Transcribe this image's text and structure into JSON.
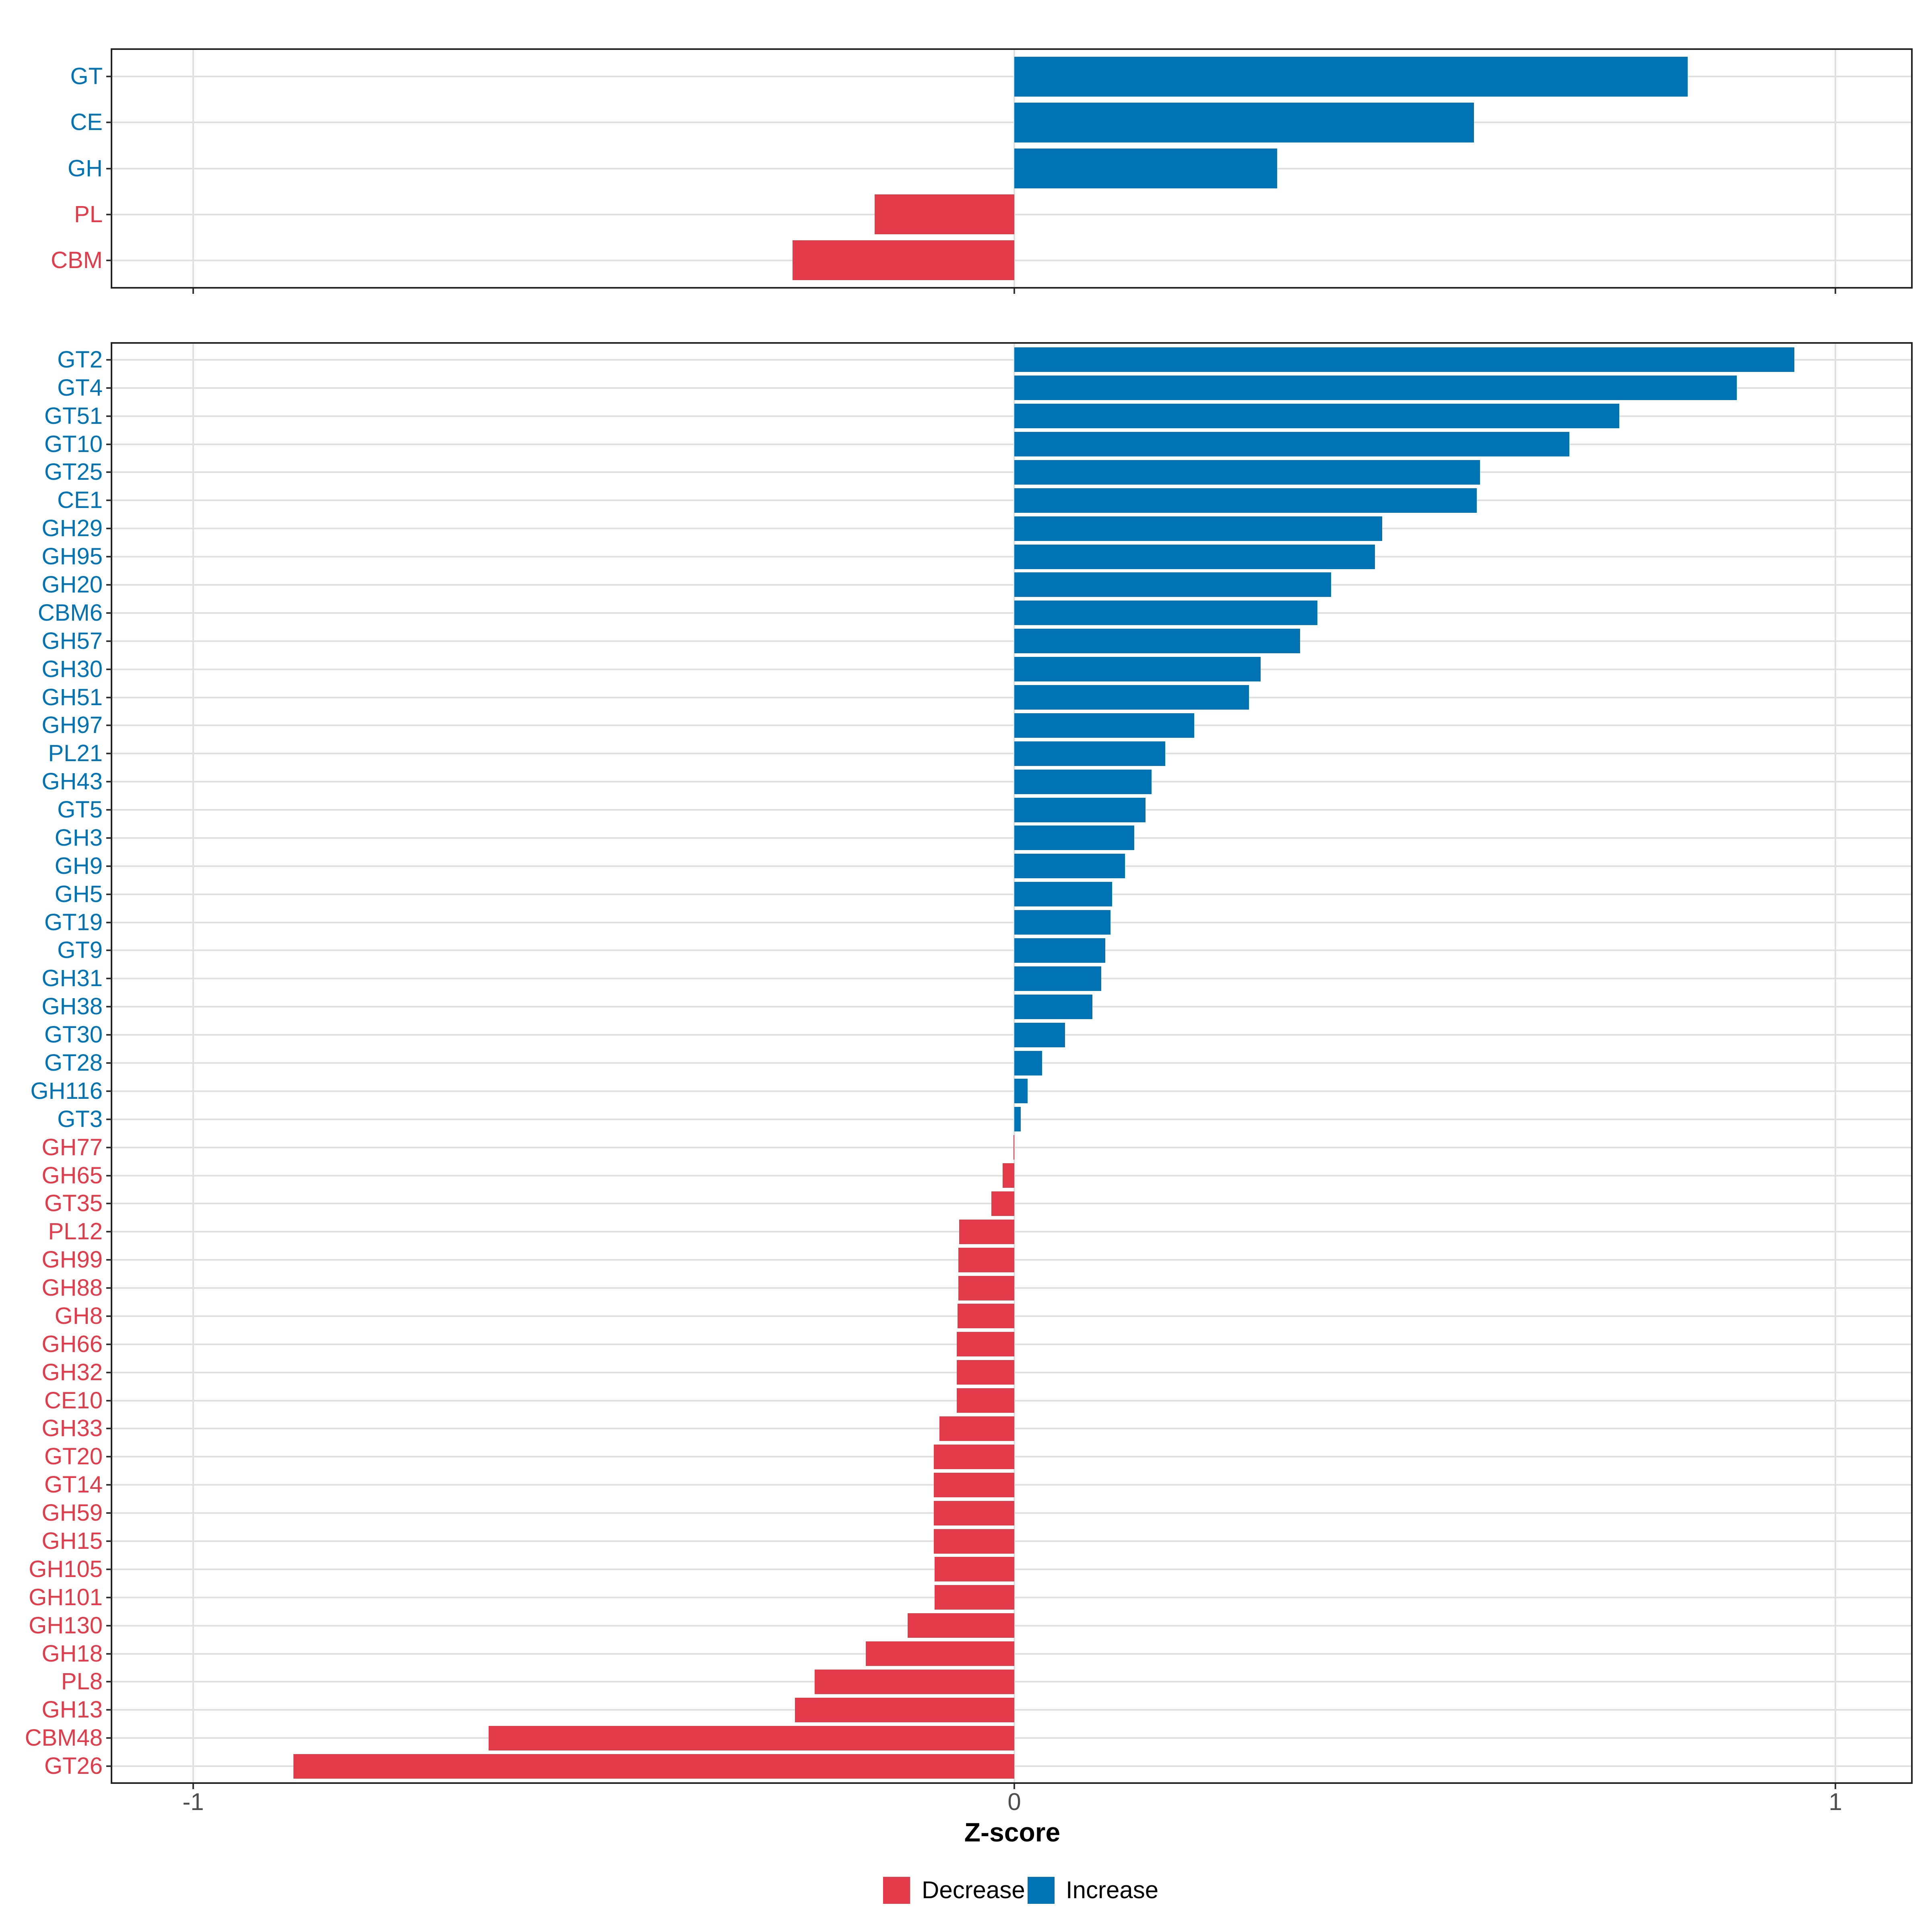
{
  "x_axis": {
    "label": "Z-score",
    "ticks": [
      -1,
      0,
      1
    ],
    "tick_labels": [
      "-1",
      "0",
      "1"
    ]
  },
  "legend": {
    "items": [
      {
        "label": "Decrease",
        "direction": "decrease"
      },
      {
        "label": "Increase",
        "direction": "increase"
      }
    ]
  },
  "colors": {
    "increase": "#0073B4",
    "decrease": "#E43B4A",
    "grid": "#E0E0E0",
    "panel_border": "#222222",
    "tick": "#333333",
    "axis_text": "#4D4D4D",
    "axis_title": "#000000",
    "background": "#FFFFFF"
  },
  "chart_data": [
    {
      "type": "bar",
      "orientation": "horizontal",
      "panel": "enzyme-classes-overview",
      "xlabel": "Z-score",
      "xlim": [
        -1.1,
        1.09
      ],
      "grid": true,
      "categories": [
        "GT",
        "CE",
        "GH",
        "PL",
        "CBM"
      ],
      "values": [
        0.82,
        0.56,
        0.32,
        -0.17,
        -0.27
      ]
    },
    {
      "type": "bar",
      "orientation": "horizontal",
      "panel": "enzyme-families-detail",
      "xlabel": "Z-score",
      "xlim": [
        -1.1,
        1.09
      ],
      "grid": true,
      "categories": [
        "GT2",
        "GT4",
        "GT51",
        "GT10",
        "GT25",
        "CE1",
        "GH29",
        "GH95",
        "GH20",
        "CBM6",
        "GH57",
        "GH30",
        "GH51",
        "GH97",
        "PL21",
        "GH43",
        "GT5",
        "GH3",
        "GH9",
        "GH5",
        "GT19",
        "GT9",
        "GH31",
        "GH38",
        "GT30",
        "GT28",
        "GH116",
        "GT3",
        "GH77",
        "GH65",
        "GT35",
        "PL12",
        "GH99",
        "GH88",
        "GH8",
        "GH66",
        "GH32",
        "CE10",
        "GH33",
        "GT20",
        "GT14",
        "GH59",
        "GH15",
        "GH105",
        "GH101",
        "GH130",
        "GH18",
        "PL8",
        "GH13",
        "CBM48",
        "GT26"
      ],
      "values": [
        0.95,
        0.88,
        0.737,
        0.676,
        0.567,
        0.563,
        0.448,
        0.439,
        0.386,
        0.369,
        0.348,
        0.3,
        0.286,
        0.219,
        0.184,
        0.167,
        0.16,
        0.146,
        0.135,
        0.119,
        0.117,
        0.111,
        0.106,
        0.095,
        0.062,
        0.034,
        0.016,
        0.008,
        -0.001,
        -0.014,
        -0.028,
        -0.067,
        -0.068,
        -0.068,
        -0.069,
        -0.07,
        -0.07,
        -0.07,
        -0.091,
        -0.098,
        -0.098,
        -0.098,
        -0.098,
        -0.097,
        -0.097,
        -0.13,
        -0.181,
        -0.243,
        -0.267,
        -0.64,
        -0.878
      ]
    }
  ]
}
